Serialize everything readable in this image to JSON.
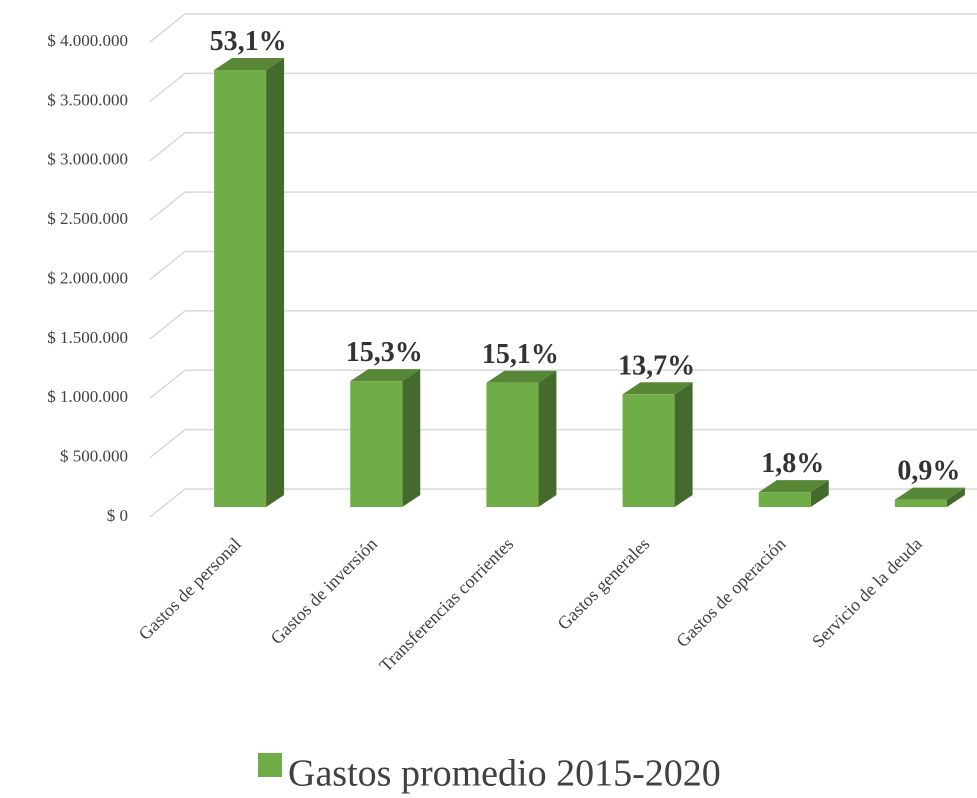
{
  "chart_data": {
    "type": "bar3d",
    "categories": [
      "Gastos de personal",
      "Gastos de inversión",
      "Transferencias corrientes",
      "Gastos generales",
      "Gastos de operación",
      "Servicio de la deuda"
    ],
    "series": [
      {
        "name": "Gastos promedio 2015-2020",
        "color": "#70ad47",
        "values": [
          3680000,
          1060000,
          1046000,
          949000,
          125000,
          62000
        ],
        "data_labels": [
          "53,1%",
          "15,3%",
          "15,1%",
          "13,7%",
          "1,8%",
          "0,9%"
        ]
      }
    ],
    "ylim": [
      0,
      4000000
    ],
    "yticks": [
      {
        "value": 0,
        "label": "$ 0"
      },
      {
        "value": 500000,
        "label": "$ 500.000"
      },
      {
        "value": 1000000,
        "label": "$ 1.000.000"
      },
      {
        "value": 1500000,
        "label": "$ 1.500.000"
      },
      {
        "value": 2000000,
        "label": "$ 2.000.000"
      },
      {
        "value": 2500000,
        "label": "$ 2.500.000"
      },
      {
        "value": 3000000,
        "label": "$ 3.000.000"
      },
      {
        "value": 3500000,
        "label": "$ 3.500.000"
      },
      {
        "value": 4000000,
        "label": "$ 4.000.000"
      }
    ],
    "grid": true,
    "legend": "bottom"
  }
}
